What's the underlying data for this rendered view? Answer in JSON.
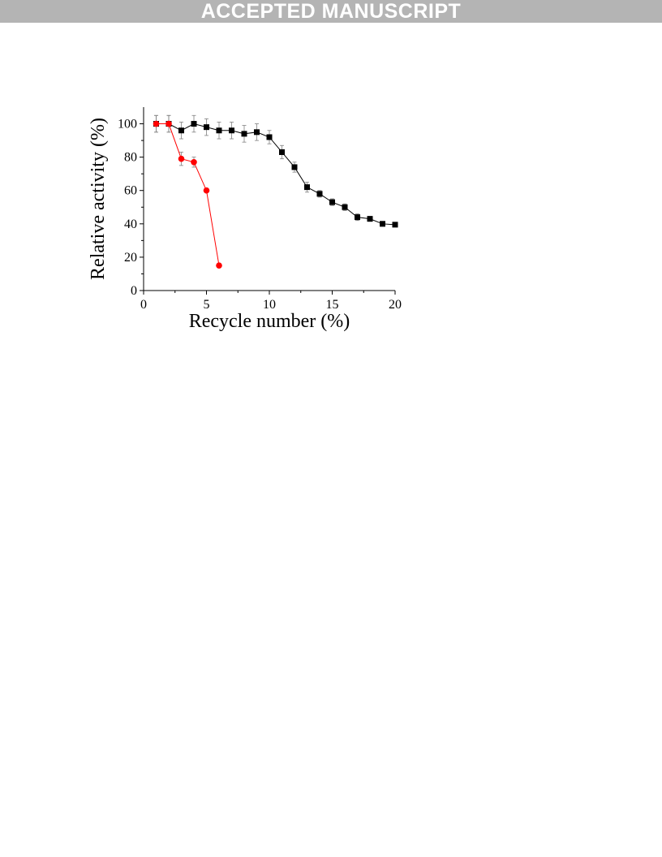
{
  "header": {
    "banner_text": "ACCEPTED MANUSCRIPT"
  },
  "colors": {
    "banner_bg": "#b4b4b4",
    "series_black": "#000000",
    "series_red": "#ff0000",
    "error_bar": "#808080"
  },
  "chart_data": {
    "type": "line",
    "xlabel": "Recycle number (%)",
    "ylabel": "Relative activity (%)",
    "xlim": [
      0,
      20
    ],
    "ylim": [
      0,
      110
    ],
    "xticks": [
      0,
      5,
      10,
      15,
      20
    ],
    "yticks": [
      0,
      20,
      40,
      60,
      80,
      100
    ],
    "grid": false,
    "legend": "none",
    "series": [
      {
        "color": "#000000",
        "marker": "square",
        "x": [
          1,
          2,
          3,
          4,
          5,
          6,
          7,
          8,
          9,
          10,
          11,
          12,
          13,
          14,
          15,
          16,
          17,
          18,
          19,
          20
        ],
        "y": [
          100,
          100,
          96,
          100,
          98,
          96,
          96,
          94,
          95,
          92,
          83,
          74,
          62,
          58,
          53,
          50,
          44,
          43,
          40,
          39.5
        ],
        "error": [
          5,
          5,
          5,
          5,
          5,
          5,
          5,
          5,
          5,
          4,
          4,
          3,
          3,
          2,
          2,
          2,
          2,
          1.5,
          1.5,
          1
        ]
      },
      {
        "color": "#ff0000",
        "marker": "circle",
        "x": [
          1,
          2,
          3,
          4,
          5,
          6
        ],
        "y": [
          100,
          100,
          79,
          77,
          60,
          15
        ],
        "error": [
          5,
          5,
          4,
          3,
          0,
          0
        ]
      }
    ]
  }
}
